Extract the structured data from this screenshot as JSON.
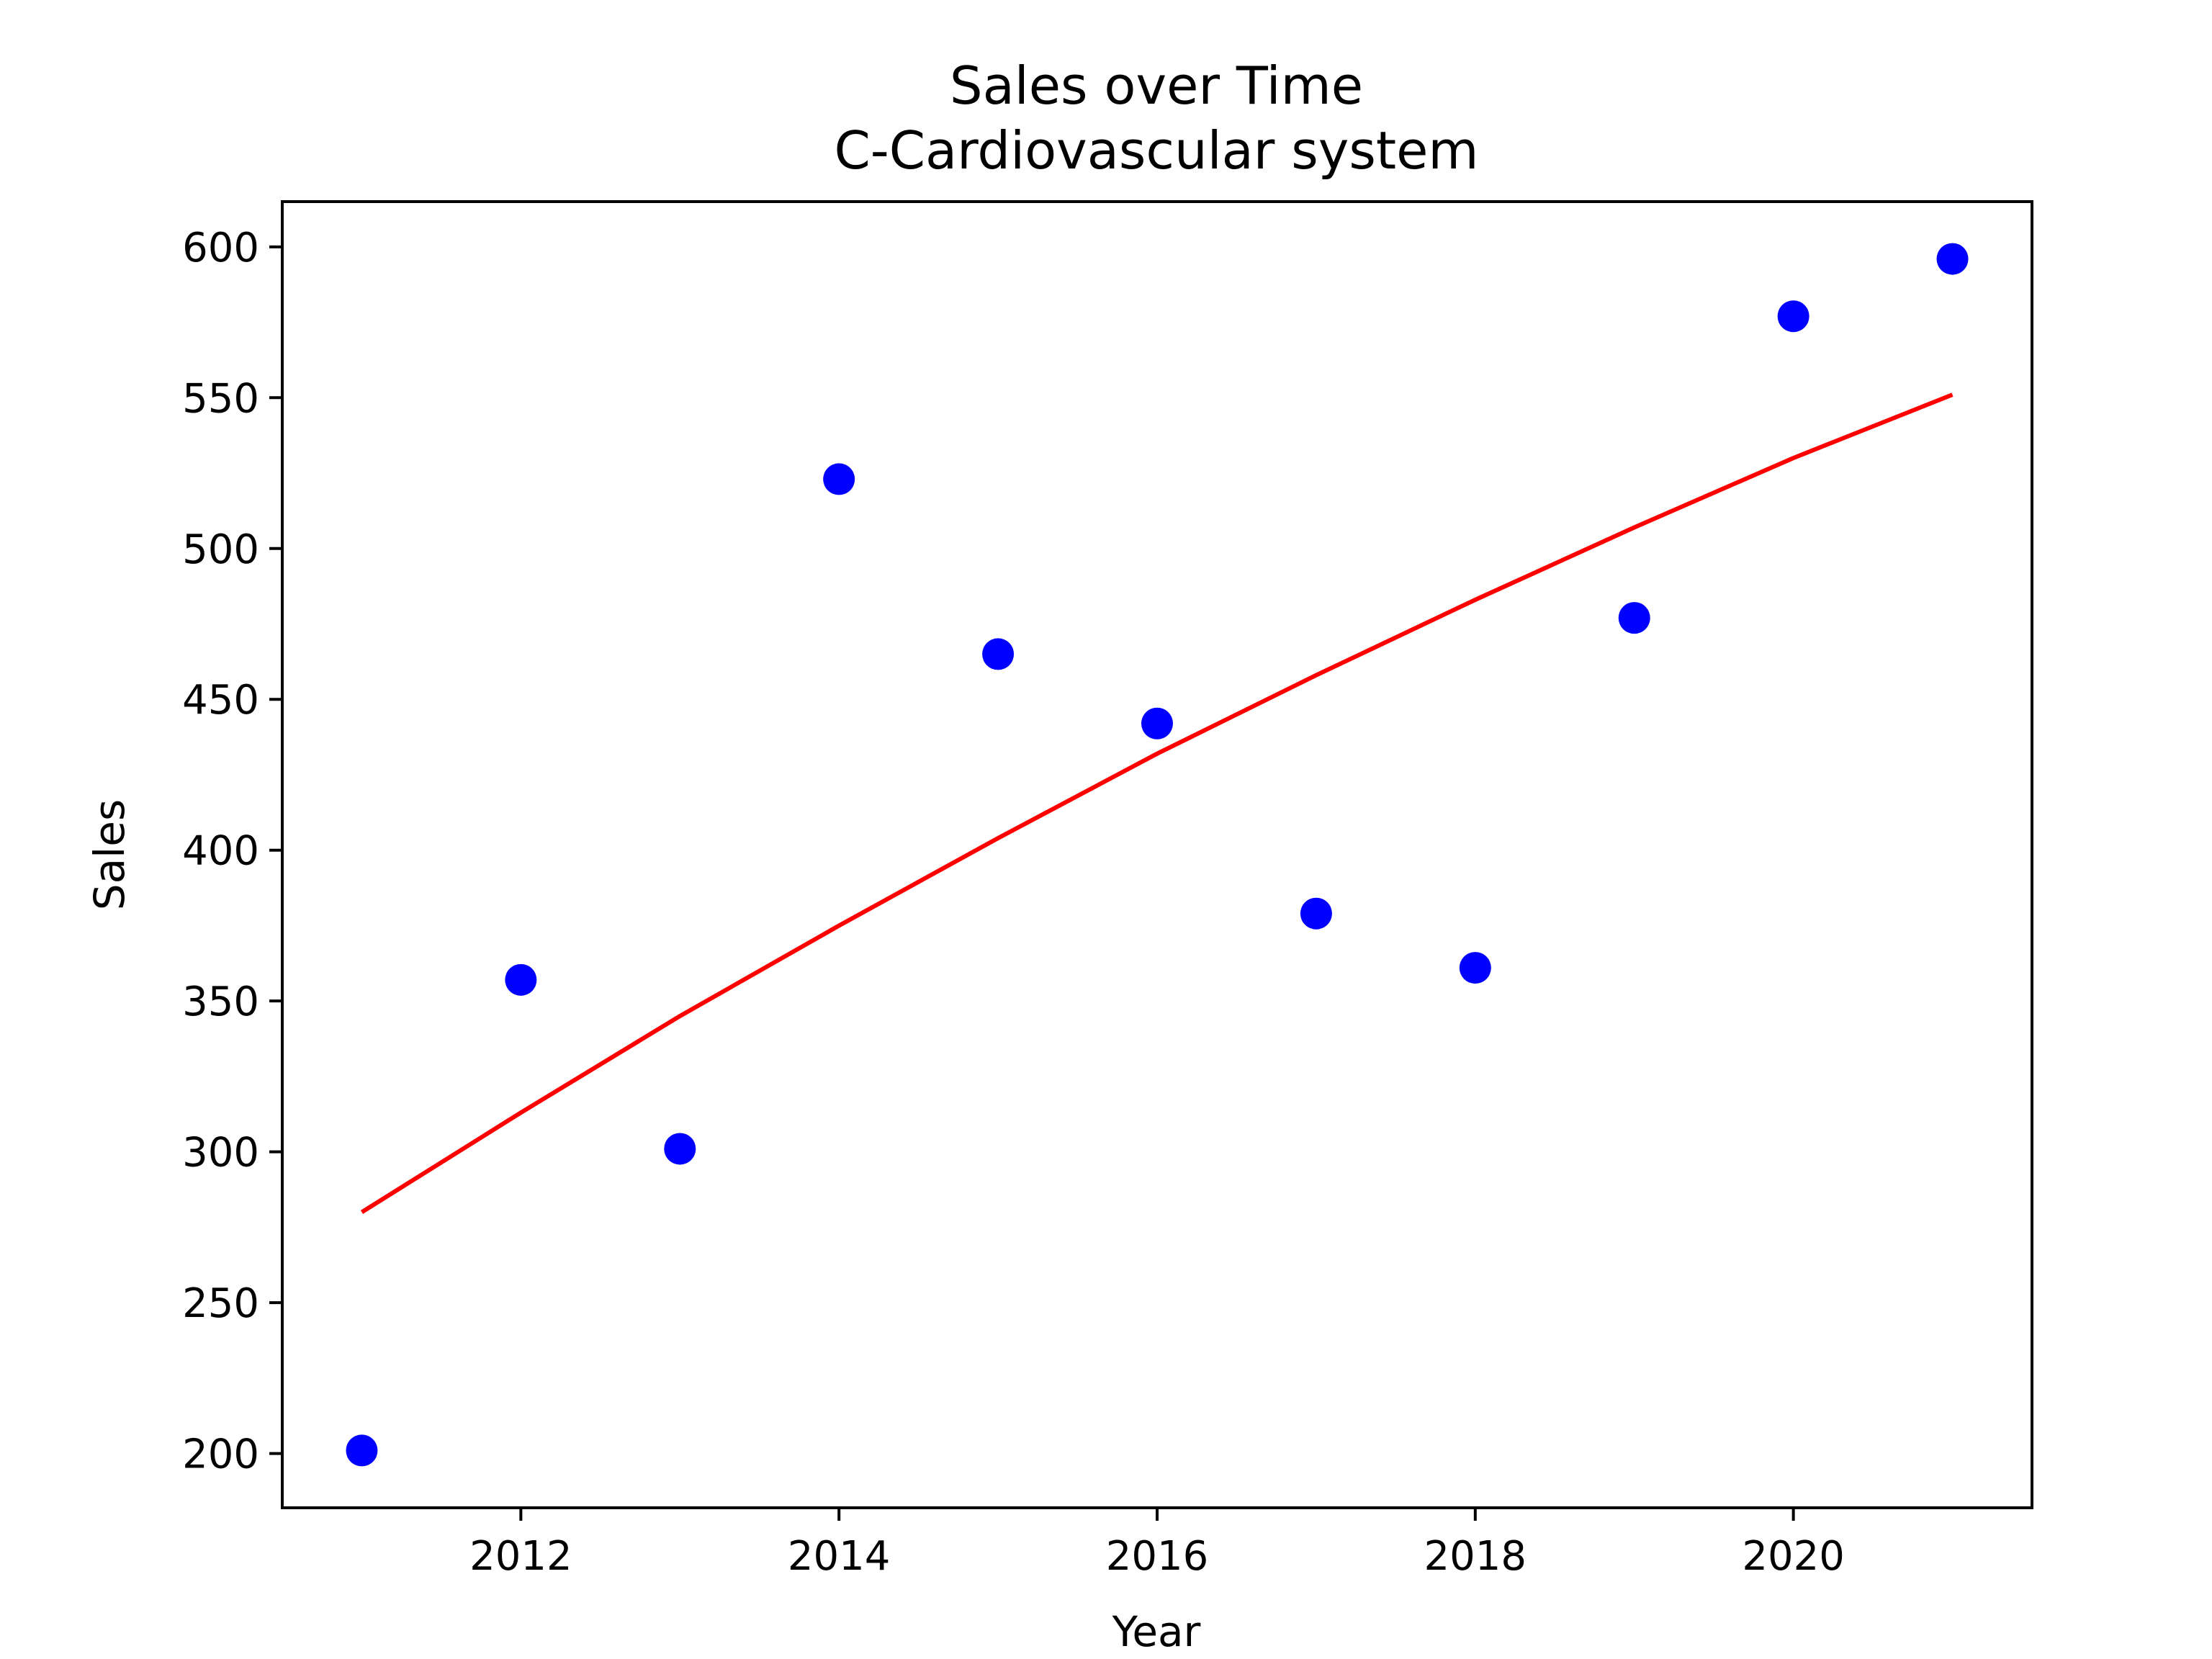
{
  "chart_data": {
    "type": "scatter",
    "title": "Sales over Time",
    "subtitle": "C-Cardiovascular system",
    "xlabel": "Year",
    "ylabel": "Sales",
    "xlim": [
      2010.5,
      2021.5
    ],
    "ylim": [
      182,
      615
    ],
    "x_ticks": [
      2012,
      2014,
      2016,
      2018,
      2020
    ],
    "y_ticks": [
      200,
      250,
      300,
      350,
      400,
      450,
      500,
      550,
      600
    ],
    "grid": false,
    "legend": "none",
    "series": [
      {
        "type": "scatter",
        "color": "#0000ff",
        "points": [
          {
            "x": 2011,
            "y": 201
          },
          {
            "x": 2012,
            "y": 357
          },
          {
            "x": 2013,
            "y": 301
          },
          {
            "x": 2014,
            "y": 523
          },
          {
            "x": 2015,
            "y": 465
          },
          {
            "x": 2016,
            "y": 442
          },
          {
            "x": 2017,
            "y": 379
          },
          {
            "x": 2018,
            "y": 361
          },
          {
            "x": 2019,
            "y": 477
          },
          {
            "x": 2020,
            "y": 577
          },
          {
            "x": 2021,
            "y": 596
          }
        ]
      },
      {
        "type": "line",
        "color": "#ff0000",
        "points": [
          {
            "x": 2011,
            "y": 280
          },
          {
            "x": 2012,
            "y": 313
          },
          {
            "x": 2013,
            "y": 345
          },
          {
            "x": 2014,
            "y": 375
          },
          {
            "x": 2015,
            "y": 404
          },
          {
            "x": 2016,
            "y": 432
          },
          {
            "x": 2017,
            "y": 458
          },
          {
            "x": 2018,
            "y": 483
          },
          {
            "x": 2019,
            "y": 507
          },
          {
            "x": 2020,
            "y": 530
          },
          {
            "x": 2021,
            "y": 551
          }
        ]
      }
    ]
  }
}
